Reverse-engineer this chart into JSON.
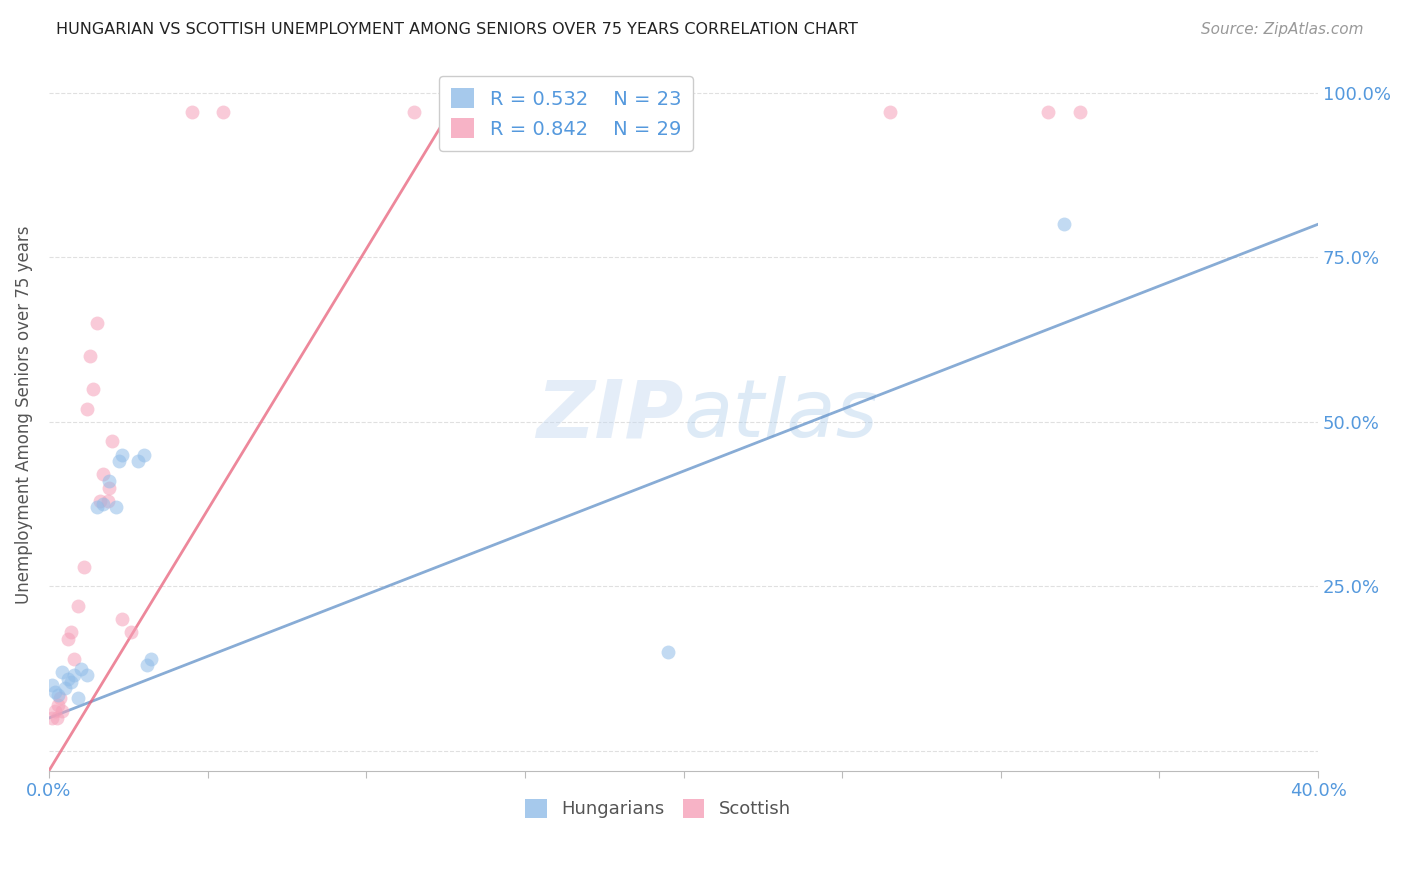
{
  "title": "HUNGARIAN VS SCOTTISH UNEMPLOYMENT AMONG SENIORS OVER 75 YEARS CORRELATION CHART",
  "source": "Source: ZipAtlas.com",
  "ylabel": "Unemployment Among Seniors over 75 years",
  "yticks": [
    "",
    "25.0%",
    "50.0%",
    "75.0%",
    "100.0%"
  ],
  "ytick_vals": [
    0.0,
    25.0,
    50.0,
    75.0,
    100.0
  ],
  "xlim": [
    0.0,
    40.0
  ],
  "ylim": [
    -3.0,
    105.0
  ],
  "watermark_zip": "ZIP",
  "watermark_atlas": "atlas",
  "legend_hun_R": "0.532",
  "legend_hun_N": "23",
  "legend_sco_R": "0.842",
  "legend_sco_N": "29",
  "hungarian_scatter": [
    [
      0.1,
      10.0
    ],
    [
      0.2,
      9.0
    ],
    [
      0.3,
      8.5
    ],
    [
      0.4,
      12.0
    ],
    [
      0.5,
      9.5
    ],
    [
      0.6,
      11.0
    ],
    [
      0.7,
      10.5
    ],
    [
      0.8,
      11.5
    ],
    [
      0.9,
      8.0
    ],
    [
      1.0,
      12.5
    ],
    [
      1.2,
      11.5
    ],
    [
      1.5,
      37.0
    ],
    [
      1.7,
      37.5
    ],
    [
      1.9,
      41.0
    ],
    [
      2.1,
      37.0
    ],
    [
      2.2,
      44.0
    ],
    [
      2.3,
      45.0
    ],
    [
      2.8,
      44.0
    ],
    [
      3.0,
      45.0
    ],
    [
      3.1,
      13.0
    ],
    [
      3.2,
      14.0
    ],
    [
      19.5,
      15.0
    ],
    [
      32.0,
      80.0
    ]
  ],
  "scottish_scatter": [
    [
      0.1,
      5.0
    ],
    [
      0.2,
      6.0
    ],
    [
      0.25,
      5.0
    ],
    [
      0.3,
      7.0
    ],
    [
      0.35,
      8.0
    ],
    [
      0.4,
      6.0
    ],
    [
      0.6,
      17.0
    ],
    [
      0.7,
      18.0
    ],
    [
      0.8,
      14.0
    ],
    [
      0.9,
      22.0
    ],
    [
      1.1,
      28.0
    ],
    [
      1.2,
      52.0
    ],
    [
      1.3,
      60.0
    ],
    [
      1.4,
      55.0
    ],
    [
      1.5,
      65.0
    ],
    [
      1.6,
      38.0
    ],
    [
      1.7,
      42.0
    ],
    [
      1.85,
      38.0
    ],
    [
      1.9,
      40.0
    ],
    [
      2.0,
      47.0
    ],
    [
      2.3,
      20.0
    ],
    [
      2.6,
      18.0
    ],
    [
      4.5,
      97.0
    ],
    [
      5.5,
      97.0
    ],
    [
      11.5,
      97.0
    ],
    [
      15.5,
      97.0
    ],
    [
      26.5,
      97.0
    ],
    [
      31.5,
      97.0
    ],
    [
      32.5,
      97.0
    ]
  ],
  "hungarian_line_x": [
    0.0,
    40.0
  ],
  "hungarian_line_y": [
    5.0,
    80.0
  ],
  "scottish_line_x": [
    0.0,
    13.0
  ],
  "scottish_line_y": [
    -3.0,
    100.0
  ],
  "scatter_size": 100,
  "scatter_alpha": 0.55,
  "line_alpha": 0.75,
  "scatter_color_hungarian": "#90bce8",
  "scatter_color_scottish": "#f5a0b8",
  "line_color_hungarian": "#6090c8",
  "line_color_scottish": "#e8607a",
  "grid_color": "#e0e0e0",
  "title_color": "#222222",
  "axis_label_color": "#5599dd",
  "ylabel_color": "#555555",
  "source_color": "#999999"
}
